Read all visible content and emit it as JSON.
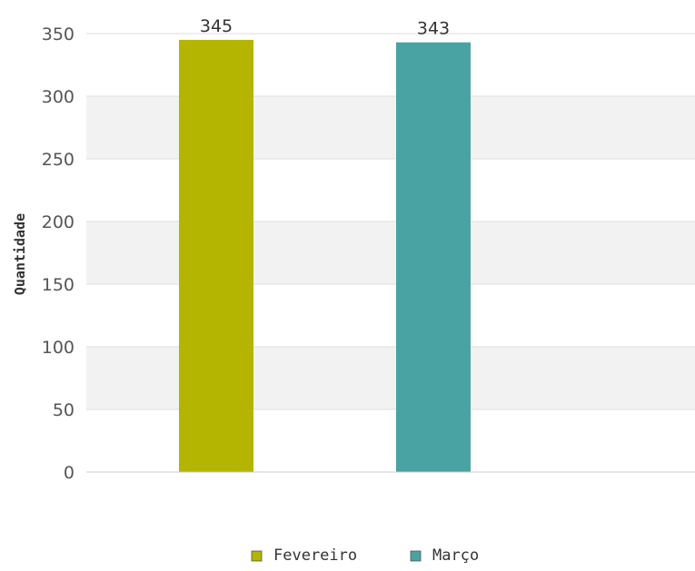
{
  "chart_data": {
    "type": "bar",
    "title": "",
    "xlabel": "",
    "ylabel": "Quantidade",
    "ylim": [
      0,
      350
    ],
    "yticks": [
      0,
      50,
      100,
      150,
      200,
      250,
      300,
      350
    ],
    "grid": true,
    "alternating_bands": true,
    "legend_position": "bottom",
    "series": [
      {
        "name": "Fevereiro",
        "values": [
          345
        ],
        "color": "#b3b500"
      },
      {
        "name": "Março",
        "values": [
          343
        ],
        "color": "#4aa3a3"
      }
    ]
  }
}
